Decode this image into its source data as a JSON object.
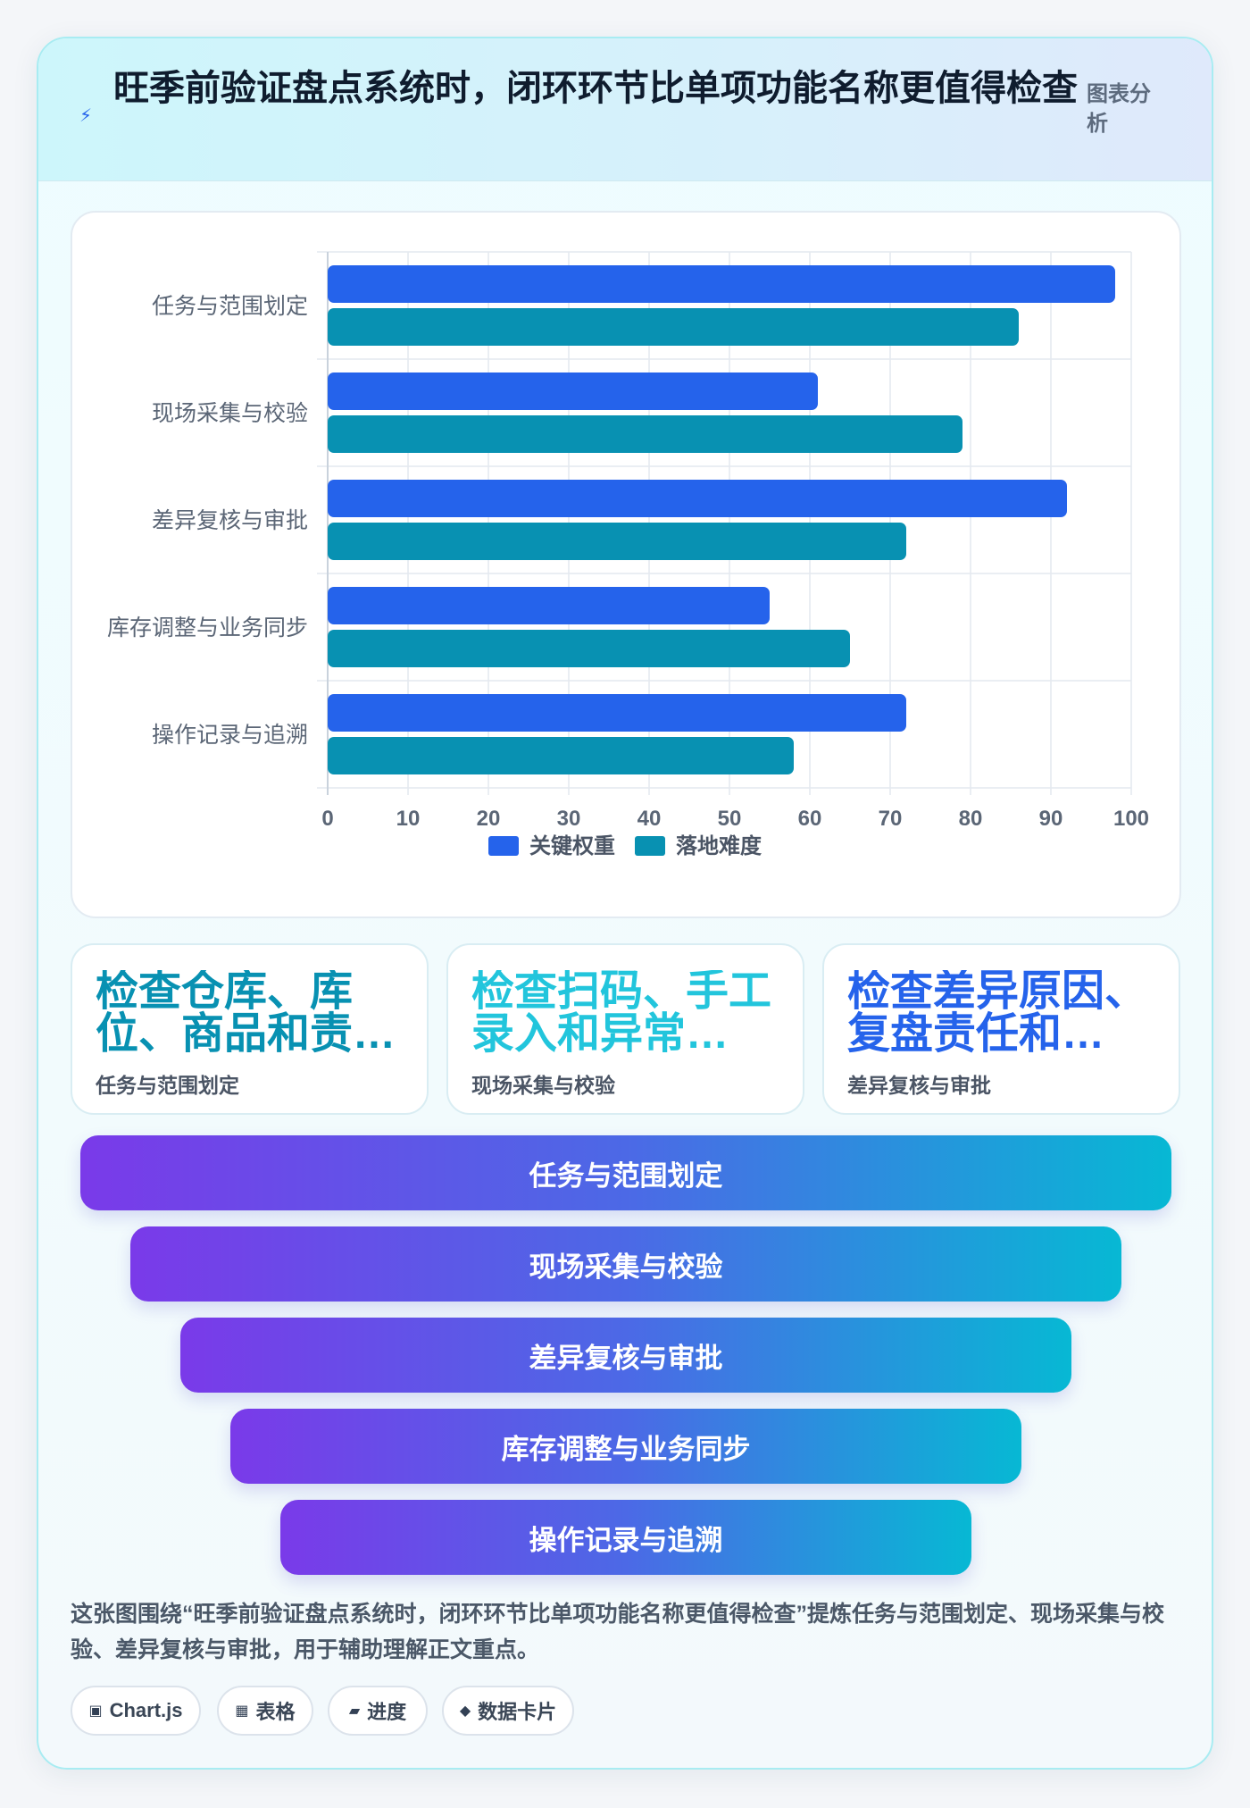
{
  "header": {
    "icon": "lightning-icon",
    "title": "旺季前验证盘点系统时，闭环环节比单项功能名称更值得检查",
    "tag": "图表分析"
  },
  "chart_data": {
    "type": "bar",
    "orientation": "horizontal",
    "categories": [
      "任务与范围划定",
      "现场采集与校验",
      "差异复核与审批",
      "库存调整与业务同步",
      "操作记录与追溯"
    ],
    "series": [
      {
        "name": "关键权重",
        "color": "#2563eb",
        "values": [
          98,
          61,
          92,
          55,
          72
        ]
      },
      {
        "name": "落地难度",
        "color": "#0891b2",
        "values": [
          86,
          79,
          72,
          65,
          58
        ]
      }
    ],
    "xlim": [
      0,
      100
    ],
    "xticks": [
      0,
      10,
      20,
      30,
      40,
      50,
      60,
      70,
      80,
      90,
      100
    ],
    "grid": true,
    "legend": "bottom-center"
  },
  "metrics": [
    {
      "value": "检查仓库、库位、商品和责…",
      "label": "任务与范围划定",
      "color": "#0891b2"
    },
    {
      "value": "检查扫码、手工录入和异常…",
      "label": "现场采集与校验",
      "color": "#22c5dc"
    },
    {
      "value": "检查差异原因、复盘责任和…",
      "label": "差异复核与审批",
      "color": "#2563eb"
    }
  ],
  "funnel": [
    "任务与范围划定",
    "现场采集与校验",
    "差异复核与审批",
    "库存调整与业务同步",
    "操作记录与追溯"
  ],
  "summary": "这张图围绕“旺季前验证盘点系统时，闭环环节比单项功能名称更值得检查”提炼任务与范围划定、现场采集与校验、差异复核与审批，用于辅助理解正文重点。",
  "chips": [
    {
      "icon": "chart-icon",
      "glyph": "▣",
      "label": "Chart.js"
    },
    {
      "icon": "table-icon",
      "glyph": "▦",
      "label": "表格"
    },
    {
      "icon": "progress-icon",
      "glyph": "▰",
      "label": "进度"
    },
    {
      "icon": "diamond-icon",
      "glyph": "◆",
      "label": "数据卡片"
    }
  ]
}
